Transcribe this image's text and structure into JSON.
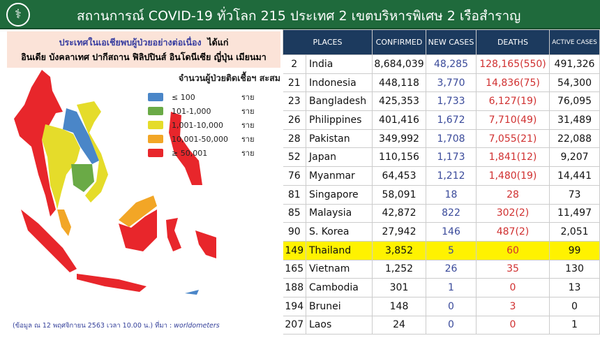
{
  "header": {
    "title": "สถานการณ์ COVID-19 ทั่วโลก 215 ประเทศ 2 เขตบริหารพิเศษ 2 เรือสำราญ",
    "logo_icon": "ministry-logo"
  },
  "notice": {
    "line1_a": "ประเทศในเอเชียพบผู้ป่วยอย่างต่อเนื่อง",
    "line1_b": "ได้แก่",
    "line2": "อินเดีย บังคลาเทศ ปากีสถาน ฟิลิปปินส์ อินโดนีเซีย ญี่ปุ่น เมียนมา"
  },
  "legend": {
    "title": "จำนวนผู้ป่วยติดเชื้อฯ สะสม",
    "items": [
      {
        "range": "≤ 100",
        "unit": "ราย",
        "color": "#4a86c8"
      },
      {
        "range": "101-1,000",
        "unit": "ราย",
        "color": "#6aaa46"
      },
      {
        "range": "1,001-10,000",
        "unit": "ราย",
        "color": "#e5dc2a"
      },
      {
        "range": "10,001-50,000",
        "unit": "ราย",
        "color": "#f2a626"
      },
      {
        "range": "≥ 50,001",
        "unit": "ราย",
        "color": "#e8262b"
      }
    ]
  },
  "source": {
    "text": "(ข้อมูล ณ 12 พฤศจิกายน 2563 เวลา 10.00 น.) ที่มา : ",
    "site": "worldometers"
  },
  "table": {
    "headers": [
      "PLACES",
      "CONFIRMED",
      "NEW  CASES",
      "DEATHS",
      "ACTIVE CASES"
    ],
    "rows": [
      [
        "2",
        "India",
        "8,684,039",
        "48,285",
        "128,165(550)",
        "491,326"
      ],
      [
        "21",
        "Indonesia",
        "448,118",
        "3,770",
        "14,836(75)",
        "54,300"
      ],
      [
        "23",
        "Bangladesh",
        "425,353",
        "1,733",
        "6,127(19)",
        "76,095"
      ],
      [
        "26",
        "Philippines",
        "401,416",
        "1,672",
        "7,710(49)",
        "31,489"
      ],
      [
        "28",
        "Pakistan",
        "349,992",
        "1,708",
        "7,055(21)",
        "22,088"
      ],
      [
        "52",
        "Japan",
        "110,156",
        "1,173",
        "1,841(12)",
        "9,207"
      ],
      [
        "76",
        "Myanmar",
        "64,453",
        "1,212",
        "1,480(19)",
        "14,441"
      ],
      [
        "81",
        "Singapore",
        "58,091",
        "18",
        "28",
        "73"
      ],
      [
        "85",
        "Malaysia",
        "42,872",
        "822",
        "302(2)",
        "11,497"
      ],
      [
        "90",
        "S. Korea",
        "27,942",
        "146",
        "487(2)",
        "2,051"
      ],
      [
        "149",
        "Thailand",
        "3,852",
        "5",
        "60",
        "99"
      ],
      [
        "165",
        "Vietnam",
        "1,252",
        "26",
        "35",
        "130"
      ],
      [
        "188",
        "Cambodia",
        "301",
        "1",
        "0",
        "13"
      ],
      [
        "194",
        "Brunei",
        "148",
        "0",
        "3",
        "0"
      ],
      [
        "207",
        "Laos",
        "24",
        "0",
        "0",
        "1"
      ]
    ],
    "highlight_row": "Thailand",
    "highlight_color": "#fff200"
  }
}
